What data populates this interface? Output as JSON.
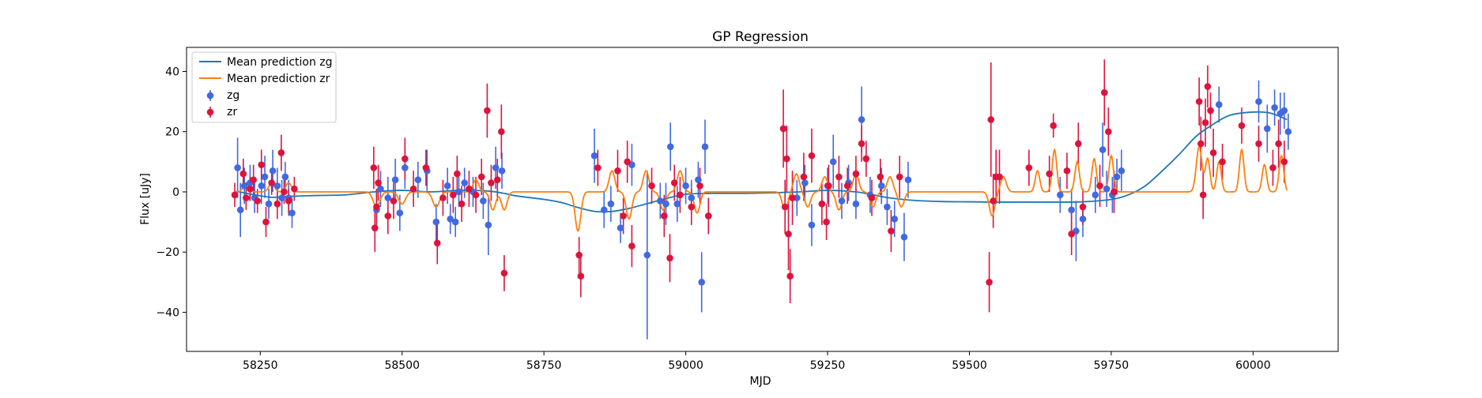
{
  "chart_data": {
    "type": "scatter",
    "title": "GP Regression",
    "xlabel": "MJD",
    "ylabel": "Flux [uJy]",
    "xlim": [
      58120,
      60150
    ],
    "ylim": [
      -53,
      48
    ],
    "xticks": [
      58250,
      58500,
      58750,
      59000,
      59250,
      59500,
      59750,
      60000
    ],
    "yticks": [
      -40,
      -20,
      0,
      20,
      40
    ],
    "grid": false,
    "legend_position": "top-left",
    "colors": {
      "zg": "#4169e1",
      "zr": "#dc143c",
      "line_zg": "#1f77b4",
      "line_zr": "#ff7f0e"
    },
    "lines": [
      {
        "name": "Mean prediction zg",
        "color": "#1f77b4",
        "x": [
          58208,
          58240,
          58270,
          58300,
          58350,
          58400,
          58450,
          58500,
          58550,
          58600,
          58650,
          58680,
          58700,
          58750,
          58780,
          58810,
          58840,
          58870,
          58900,
          58930,
          58960,
          59000,
          59050,
          59100,
          59150,
          59200,
          59250,
          59300,
          59330,
          59360,
          59400,
          59450,
          59500,
          59550,
          59600,
          59650,
          59700,
          59750,
          59780,
          59810,
          59840,
          59870,
          59900,
          59930,
          59960,
          60000,
          60030,
          60060
        ],
        "y": [
          0.2,
          -1.0,
          -1.8,
          -1.5,
          -1.2,
          -1.0,
          0.0,
          0.5,
          0.0,
          0.5,
          0.3,
          -0.5,
          -1.3,
          -2.5,
          -3.5,
          -5.2,
          -6.5,
          -6.5,
          -5.5,
          -4.0,
          -2.5,
          -0.8,
          -0.5,
          -0.5,
          -0.3,
          0.0,
          0.5,
          0.0,
          -1.0,
          -2.0,
          -2.8,
          -3.2,
          -3.3,
          -3.4,
          -3.4,
          -3.4,
          -3.3,
          -2.5,
          -1.0,
          2.0,
          7.0,
          12.5,
          18.5,
          22.5,
          25.5,
          26.5,
          26.2,
          24.0
        ]
      },
      {
        "name": "Mean prediction zr",
        "color": "#ff7f0e",
        "baseline": 0,
        "spikes": [
          [
            58225,
            3,
            5
          ],
          [
            58270,
            3,
            5
          ],
          [
            58300,
            3,
            5
          ],
          [
            58455,
            -5,
            6
          ],
          [
            58500,
            -4,
            6
          ],
          [
            58560,
            -5,
            6
          ],
          [
            58630,
            4,
            5
          ],
          [
            58660,
            -6,
            5
          ],
          [
            58680,
            -6,
            5
          ],
          [
            58810,
            -13,
            5
          ],
          [
            58870,
            7,
            5
          ],
          [
            58900,
            -9,
            5
          ],
          [
            58930,
            7,
            5
          ],
          [
            58960,
            -6,
            5
          ],
          [
            58990,
            7,
            5
          ],
          [
            59020,
            -7,
            5
          ],
          [
            59175,
            -6,
            5
          ],
          [
            59195,
            6,
            5
          ],
          [
            59215,
            -5,
            5
          ],
          [
            59245,
            5,
            5
          ],
          [
            59270,
            -6,
            5
          ],
          [
            59300,
            6,
            5
          ],
          [
            59330,
            -5,
            5
          ],
          [
            59360,
            5,
            5
          ],
          [
            59380,
            -5,
            5
          ],
          [
            59540,
            -8,
            5
          ],
          [
            59560,
            5,
            5
          ],
          [
            59620,
            7,
            4
          ],
          [
            59650,
            14,
            4
          ],
          [
            59690,
            10,
            4
          ],
          [
            59720,
            11,
            4
          ],
          [
            59750,
            12,
            4
          ],
          [
            59905,
            15,
            5
          ],
          [
            59920,
            11,
            4
          ],
          [
            59940,
            10,
            4
          ],
          [
            59980,
            14,
            4
          ],
          [
            60020,
            9,
            4
          ],
          [
            60050,
            12,
            4
          ]
        ]
      }
    ],
    "series": [
      {
        "name": "zg",
        "color": "#4169e1",
        "points": [
          [
            58210,
            8,
            10
          ],
          [
            58215,
            -6,
            9
          ],
          [
            58222,
            2,
            6
          ],
          [
            58232,
            3,
            6
          ],
          [
            58240,
            -2,
            5
          ],
          [
            58252,
            2,
            6
          ],
          [
            58258,
            5,
            7
          ],
          [
            58265,
            -4,
            5
          ],
          [
            58272,
            7,
            7
          ],
          [
            58280,
            2,
            6
          ],
          [
            58288,
            -2,
            6
          ],
          [
            58294,
            5,
            5
          ],
          [
            58300,
            -2,
            6
          ],
          [
            58306,
            -7,
            5
          ],
          [
            58455,
            -6,
            7
          ],
          [
            58462,
            1,
            6
          ],
          [
            58475,
            -2,
            7
          ],
          [
            58488,
            4,
            7
          ],
          [
            58496,
            -7,
            6
          ],
          [
            58505,
            8,
            7
          ],
          [
            58528,
            4,
            6
          ],
          [
            58544,
            7,
            7
          ],
          [
            58560,
            -10,
            6
          ],
          [
            58580,
            2,
            6
          ],
          [
            58585,
            -9,
            5
          ],
          [
            58594,
            -10,
            5
          ],
          [
            58600,
            0,
            5
          ],
          [
            58610,
            3,
            5
          ],
          [
            58625,
            0,
            5
          ],
          [
            58643,
            -3,
            6
          ],
          [
            58652,
            -11,
            10
          ],
          [
            58665,
            8,
            7
          ],
          [
            58676,
            7,
            6
          ],
          [
            58839,
            12,
            9
          ],
          [
            58856,
            -6,
            6
          ],
          [
            58868,
            -4,
            6
          ],
          [
            58885,
            -12,
            5
          ],
          [
            58905,
            9,
            7
          ],
          [
            58932,
            -21,
            28
          ],
          [
            58955,
            -3,
            6
          ],
          [
            58965,
            -4,
            7
          ],
          [
            58973,
            15,
            8
          ],
          [
            58985,
            -4,
            6
          ],
          [
            59000,
            2,
            6
          ],
          [
            59010,
            -2,
            6
          ],
          [
            59022,
            4,
            6
          ],
          [
            59028,
            -30,
            10
          ],
          [
            59034,
            15,
            9
          ],
          [
            59040,
            -8,
            6
          ],
          [
            59196,
            -2,
            6
          ],
          [
            59210,
            3,
            6
          ],
          [
            59222,
            -11,
            7
          ],
          [
            59250,
            2,
            6
          ],
          [
            59260,
            10,
            9
          ],
          [
            59275,
            -3,
            6
          ],
          [
            59287,
            3,
            6
          ],
          [
            59300,
            -4,
            5
          ],
          [
            59310,
            24,
            11
          ],
          [
            59325,
            -1,
            6
          ],
          [
            59345,
            2,
            6
          ],
          [
            59355,
            -5,
            6
          ],
          [
            59368,
            -9,
            6
          ],
          [
            59385,
            -15,
            8
          ],
          [
            59392,
            4,
            6
          ],
          [
            59660,
            -1,
            6
          ],
          [
            59680,
            -6,
            7
          ],
          [
            59688,
            -13,
            10
          ],
          [
            59700,
            -9,
            6
          ],
          [
            59722,
            -1,
            6
          ],
          [
            59735,
            14,
            9
          ],
          [
            59742,
            1,
            6
          ],
          [
            59752,
            -1,
            6
          ],
          [
            59760,
            5,
            6
          ],
          [
            59768,
            7,
            7
          ],
          [
            59940,
            29,
            6
          ],
          [
            60010,
            30,
            7
          ],
          [
            60025,
            21,
            8
          ],
          [
            60038,
            28,
            6
          ],
          [
            60048,
            26,
            7
          ],
          [
            60055,
            27,
            6
          ],
          [
            60062,
            20,
            6
          ]
        ]
      },
      {
        "name": "zr",
        "color": "#dc143c",
        "points": [
          [
            58205,
            -1,
            4
          ],
          [
            58220,
            6,
            5
          ],
          [
            58225,
            -2,
            4
          ],
          [
            58232,
            1,
            4
          ],
          [
            58238,
            4,
            5
          ],
          [
            58245,
            -3,
            4
          ],
          [
            58252,
            9,
            5
          ],
          [
            58260,
            -10,
            5
          ],
          [
            58270,
            3,
            4
          ],
          [
            58280,
            -4,
            5
          ],
          [
            58287,
            13,
            6
          ],
          [
            58292,
            0,
            4
          ],
          [
            58300,
            -3,
            4
          ],
          [
            58310,
            1,
            4
          ],
          [
            58450,
            8,
            7
          ],
          [
            58452,
            -12,
            8
          ],
          [
            58455,
            -5,
            6
          ],
          [
            58458,
            3,
            6
          ],
          [
            58475,
            -8,
            6
          ],
          [
            58485,
            -3,
            6
          ],
          [
            58505,
            11,
            7
          ],
          [
            58520,
            1,
            6
          ],
          [
            58542,
            8,
            6
          ],
          [
            58562,
            -17,
            7
          ],
          [
            58572,
            -2,
            6
          ],
          [
            58590,
            -1,
            6
          ],
          [
            58597,
            6,
            6
          ],
          [
            58605,
            -4,
            6
          ],
          [
            58618,
            1,
            6
          ],
          [
            58630,
            -1,
            6
          ],
          [
            58640,
            5,
            6
          ],
          [
            58650,
            27,
            9
          ],
          [
            58657,
            3,
            6
          ],
          [
            58668,
            4,
            7
          ],
          [
            58675,
            20,
            9
          ],
          [
            58680,
            -27,
            6
          ],
          [
            58812,
            -21,
            6
          ],
          [
            58815,
            -28,
            7
          ],
          [
            58845,
            8,
            6
          ],
          [
            58880,
            7,
            7
          ],
          [
            58890,
            -8,
            6
          ],
          [
            58897,
            10,
            7
          ],
          [
            58905,
            -18,
            7
          ],
          [
            58940,
            2,
            6
          ],
          [
            58962,
            -8,
            7
          ],
          [
            58972,
            -22,
            8
          ],
          [
            58980,
            3,
            6
          ],
          [
            58990,
            -1,
            6
          ],
          [
            59010,
            -5,
            6
          ],
          [
            59025,
            2,
            6
          ],
          [
            59040,
            -8,
            6
          ],
          [
            59172,
            21,
            13
          ],
          [
            59175,
            -5,
            9
          ],
          [
            59178,
            11,
            11
          ],
          [
            59181,
            -14,
            12
          ],
          [
            59184,
            -28,
            9
          ],
          [
            59188,
            -2,
            9
          ],
          [
            59208,
            5,
            8
          ],
          [
            59222,
            12,
            9
          ],
          [
            59240,
            -4,
            7
          ],
          [
            59248,
            -10,
            6
          ],
          [
            59252,
            2,
            7
          ],
          [
            59270,
            5,
            7
          ],
          [
            59285,
            2,
            6
          ],
          [
            59300,
            6,
            6
          ],
          [
            59310,
            16,
            6
          ],
          [
            59318,
            11,
            6
          ],
          [
            59328,
            -2,
            6
          ],
          [
            59343,
            5,
            6
          ],
          [
            59362,
            -13,
            7
          ],
          [
            59377,
            5,
            7
          ],
          [
            59535,
            -30,
            10
          ],
          [
            59538,
            24,
            19
          ],
          [
            59542,
            -3,
            9
          ],
          [
            59547,
            5,
            9
          ],
          [
            59553,
            5,
            9
          ],
          [
            59605,
            8,
            6
          ],
          [
            59641,
            6,
            6
          ],
          [
            59648,
            22,
            4
          ],
          [
            59672,
            7,
            6
          ],
          [
            59680,
            -14,
            7
          ],
          [
            59692,
            16,
            7
          ],
          [
            59700,
            -5,
            6
          ],
          [
            59730,
            2,
            7
          ],
          [
            59738,
            33,
            11
          ],
          [
            59745,
            20,
            8
          ],
          [
            59755,
            0,
            7
          ],
          [
            59905,
            30,
            8
          ],
          [
            59908,
            16,
            9
          ],
          [
            59912,
            -1,
            8
          ],
          [
            59916,
            23,
            8
          ],
          [
            59920,
            35,
            7
          ],
          [
            59925,
            27,
            6
          ],
          [
            59930,
            13,
            8
          ],
          [
            59946,
            10,
            6
          ],
          [
            59980,
            22,
            6
          ],
          [
            60010,
            16,
            6
          ],
          [
            60035,
            8,
            6
          ],
          [
            60045,
            16,
            8
          ],
          [
            60055,
            10,
            7
          ]
        ]
      }
    ]
  }
}
